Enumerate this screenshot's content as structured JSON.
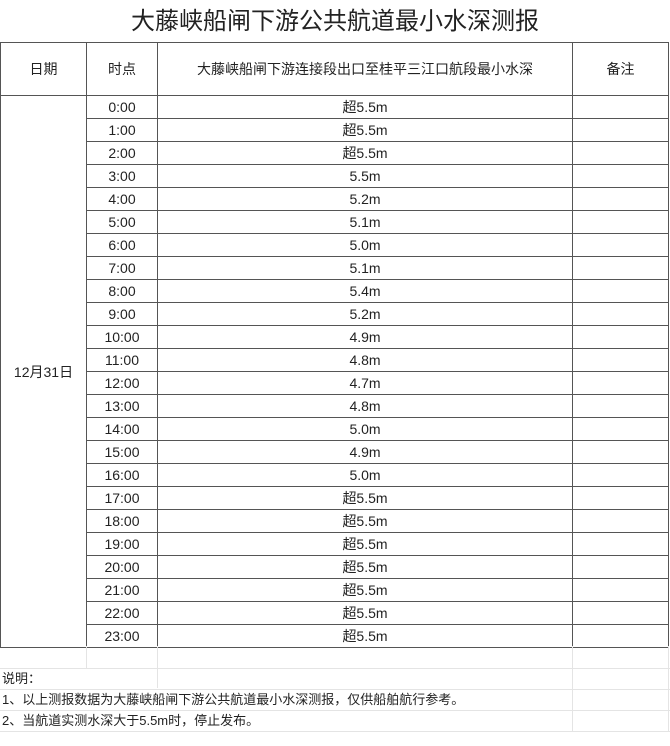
{
  "title": "大藤峡船闸下游公共航道最小水深测报",
  "headers": {
    "date": "日期",
    "time": "时点",
    "depth": "大藤峡船闸下游连接段出口至桂平三江口航段最小水深",
    "remark": "备注"
  },
  "date": "12月31日",
  "rows": [
    {
      "time": "0:00",
      "depth": "超5.5m"
    },
    {
      "time": "1:00",
      "depth": "超5.5m"
    },
    {
      "time": "2:00",
      "depth": "超5.5m"
    },
    {
      "time": "3:00",
      "depth": "5.5m"
    },
    {
      "time": "4:00",
      "depth": "5.2m"
    },
    {
      "time": "5:00",
      "depth": "5.1m"
    },
    {
      "time": "6:00",
      "depth": "5.0m"
    },
    {
      "time": "7:00",
      "depth": "5.1m"
    },
    {
      "time": "8:00",
      "depth": "5.4m"
    },
    {
      "time": "9:00",
      "depth": "5.2m"
    },
    {
      "time": "10:00",
      "depth": "4.9m"
    },
    {
      "time": "11:00",
      "depth": "4.8m"
    },
    {
      "time": "12:00",
      "depth": "4.7m"
    },
    {
      "time": "13:00",
      "depth": "4.8m"
    },
    {
      "time": "14:00",
      "depth": "5.0m"
    },
    {
      "time": "15:00",
      "depth": "4.9m"
    },
    {
      "time": "16:00",
      "depth": "5.0m"
    },
    {
      "time": "17:00",
      "depth": "超5.5m"
    },
    {
      "time": "18:00",
      "depth": "超5.5m"
    },
    {
      "time": "19:00",
      "depth": "超5.5m"
    },
    {
      "time": "20:00",
      "depth": "超5.5m"
    },
    {
      "time": "21:00",
      "depth": "超5.5m"
    },
    {
      "time": "22:00",
      "depth": "超5.5m"
    },
    {
      "time": "23:00",
      "depth": "超5.5m"
    }
  ],
  "notes": {
    "heading": "说明：",
    "line1": "1、以上测报数据为大藤峡船闸下游公共航道最小水深测报，仅供船舶航行参考。",
    "line2": "2、当航道实测水深大于5.5m时，停止发布。"
  }
}
